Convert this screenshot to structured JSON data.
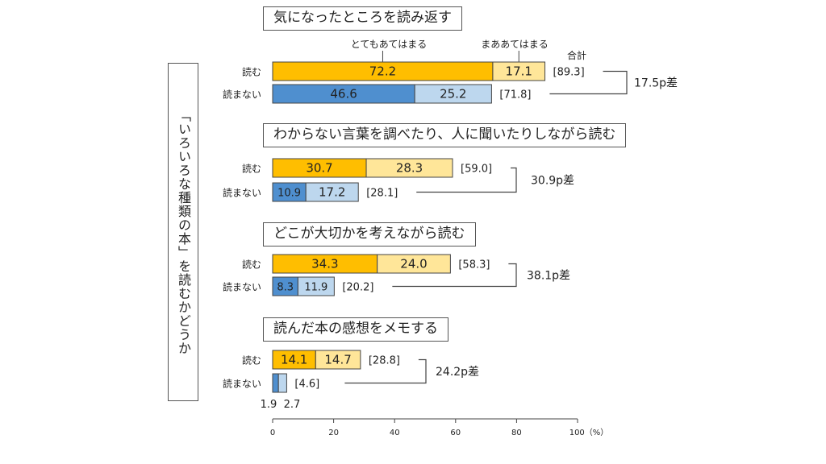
{
  "side_label": "「いろいろな種類の本」を読むかどうか",
  "chart_data": {
    "type": "bar",
    "orientation": "horizontal",
    "stacked": true,
    "xlim": [
      0,
      100
    ],
    "x_ticks": [
      "0",
      "20",
      "40",
      "60",
      "80",
      "100（%）"
    ],
    "legend": {
      "series1": "とてもあてはまる",
      "series2": "まああてはまる",
      "total": "合計"
    },
    "groups": [
      {
        "title": "気になったところを読み返す",
        "rows": [
          {
            "label": "読む",
            "series1": 72.2,
            "series2": 17.1,
            "series1_text": "72.2",
            "series2_text": "17.1",
            "total_text": "[89.3]"
          },
          {
            "label": "読まない",
            "series1": 46.6,
            "series2": 25.2,
            "series1_text": "46.6",
            "series2_text": "25.2",
            "total_text": "[71.8]"
          }
        ],
        "diff": "17.5p差"
      },
      {
        "title": "わからない言葉を調べたり、人に聞いたりしながら読む",
        "rows": [
          {
            "label": "読む",
            "series1": 30.7,
            "series2": 28.3,
            "series1_text": "30.7",
            "series2_text": "28.3",
            "total_text": "[59.0]"
          },
          {
            "label": "読まない",
            "series1": 10.9,
            "series2": 17.2,
            "series1_text": "10.9",
            "series2_text": "17.2",
            "total_text": "[28.1]"
          }
        ],
        "diff": "30.9p差"
      },
      {
        "title": "どこが大切かを考えながら読む",
        "rows": [
          {
            "label": "読む",
            "series1": 34.3,
            "series2": 24.0,
            "series1_text": "34.3",
            "series2_text": "24.0",
            "total_text": "[58.3]"
          },
          {
            "label": "読まない",
            "series1": 8.3,
            "series2": 11.9,
            "series1_text": "8.3",
            "series2_text": "11.9",
            "total_text": "[20.2]"
          }
        ],
        "diff": "38.1p差"
      },
      {
        "title": "読んだ本の感想をメモする",
        "rows": [
          {
            "label": "読む",
            "series1": 14.1,
            "series2": 14.7,
            "series1_text": "14.1",
            "series2_text": "14.7",
            "total_text": "[28.8]"
          },
          {
            "label": "読まない",
            "series1": 1.9,
            "series2": 2.7,
            "series1_text": "1.9",
            "series2_text": "2.7",
            "total_text": "[4.6]"
          }
        ],
        "diff": "24.2p差"
      }
    ],
    "colors": {
      "yes_dark": "#FFBE00",
      "yes_light": "#FFE699",
      "no_dark": "#4F8FCF",
      "no_light": "#BDD7EE",
      "line": "#444444"
    }
  }
}
